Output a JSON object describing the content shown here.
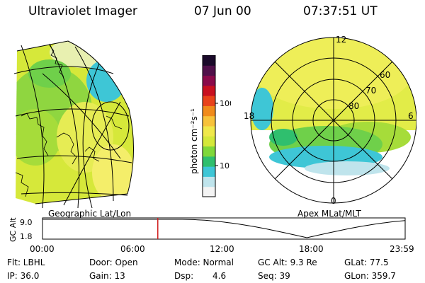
{
  "header": {
    "title": "Ultraviolet Imager",
    "date": "07 Jun 00",
    "time": "07:37:51 UT"
  },
  "left_panel": {
    "caption": "Geographic Lat/Lon"
  },
  "right_panel": {
    "caption": "Apex MLat/MLT",
    "mlt_labels": [
      "12",
      "18",
      "6",
      "0"
    ],
    "lat_labels": [
      "60",
      "70",
      "80"
    ]
  },
  "colorbar": {
    "unit_label": "photon cm⁻²s⁻¹",
    "ticks": [
      "100",
      "10"
    ],
    "colors": [
      "#f4f4f4",
      "#bfe4ec",
      "#3ec6d6",
      "#2fbf6e",
      "#7fd83a",
      "#d4e83a",
      "#f0e84a",
      "#f7c23a",
      "#f08a1a",
      "#e8421a",
      "#c81020",
      "#8a0a4a",
      "#50104a",
      "#1a0a2a"
    ]
  },
  "altitude_plot": {
    "ylabel": "GC Alt",
    "yticks": [
      "9.0",
      "1.8"
    ],
    "xticks": [
      "00:00",
      "06:00",
      "12:00",
      "18:00",
      "23:59"
    ],
    "current_hour": 7.63
  },
  "info": {
    "flt": "Flt: LBHL",
    "ip": "IP: 36.0",
    "door": "Door: Open",
    "gain": "Gain: 13",
    "mode": "Mode: Normal",
    "dsp_label": "Dsp:",
    "dsp_value": "4.6",
    "gcalt": "GC Alt: 9.3 Re",
    "seq": "Seq: 39",
    "glat": "GLat: 77.5",
    "glon": "GLon: 359.7"
  }
}
